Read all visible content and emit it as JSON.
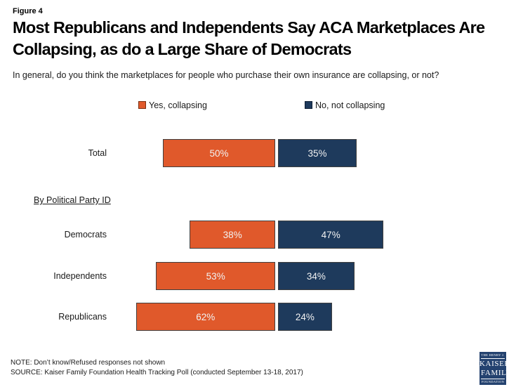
{
  "header": {
    "figure_label": "Figure 4",
    "title": "Most Republicans and Independents Say ACA Marketplaces Are Collapsing, as do a Large Share of Democrats",
    "subtitle": "In general, do you think the marketplaces for people who purchase their own insurance are collapsing, or not?"
  },
  "chart_data": {
    "type": "bar",
    "orientation": "horizontal-diverging",
    "categories": [
      "Total",
      "Democrats",
      "Independents",
      "Republicans"
    ],
    "group_label": "By Political Party ID",
    "series": [
      {
        "name": "Yes, collapsing",
        "color": "#e0592b",
        "values": [
          50,
          38,
          53,
          62
        ]
      },
      {
        "name": "No, not collapsing",
        "color": "#1e3a5c",
        "values": [
          35,
          47,
          34,
          24
        ]
      }
    ],
    "value_suffix": "%",
    "value_labels": [
      [
        "50%",
        "35%"
      ],
      [
        "38%",
        "47%"
      ],
      [
        "53%",
        "34%"
      ],
      [
        "62%",
        "24%"
      ]
    ],
    "legend_position": "top",
    "axis_max": 100,
    "grid": false
  },
  "footer": {
    "note": "NOTE: Don’t know/Refused responses not shown",
    "source": "SOURCE: Kaiser Family Foundation Health Tracking Poll (conducted September 13-18, 2017)"
  },
  "logo": {
    "line1": "THE HENRY J.",
    "line2": "KAISER",
    "line3": "FAMILY",
    "line4": "FOUNDATION"
  }
}
